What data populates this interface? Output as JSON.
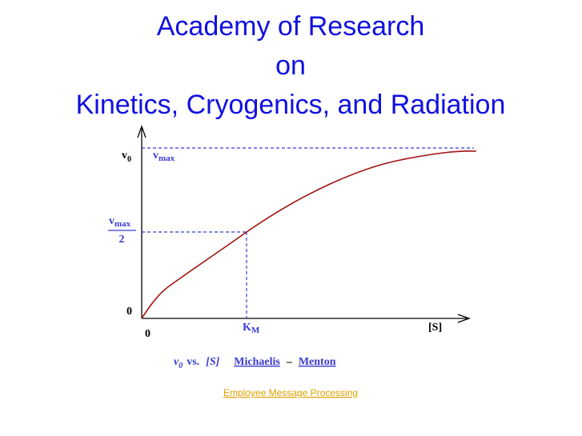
{
  "header": {
    "title_lines": [
      "Academy of Research",
      "on",
      "Kinetics, Cryogenics, and Radiation"
    ]
  },
  "diagram": {
    "y_axis_label": {
      "base": "v",
      "sub": "0"
    },
    "vmax_label": {
      "base": "v",
      "sub": "max"
    },
    "half_label": {
      "numerator": {
        "base": "v",
        "sub": "max"
      },
      "denominator": "2"
    },
    "y_origin": "0",
    "x_origin": "0",
    "km_label": {
      "base": "K",
      "sub": "M"
    },
    "x_axis_label": "[S]"
  },
  "caption": {
    "v": {
      "base": "v",
      "sub": "0"
    },
    "vs": "vs.",
    "s": "[S]",
    "link1": "Michaelis",
    "dash": "–",
    "link2": "Menton"
  },
  "footer": {
    "link": "Employee Message Processing"
  }
}
